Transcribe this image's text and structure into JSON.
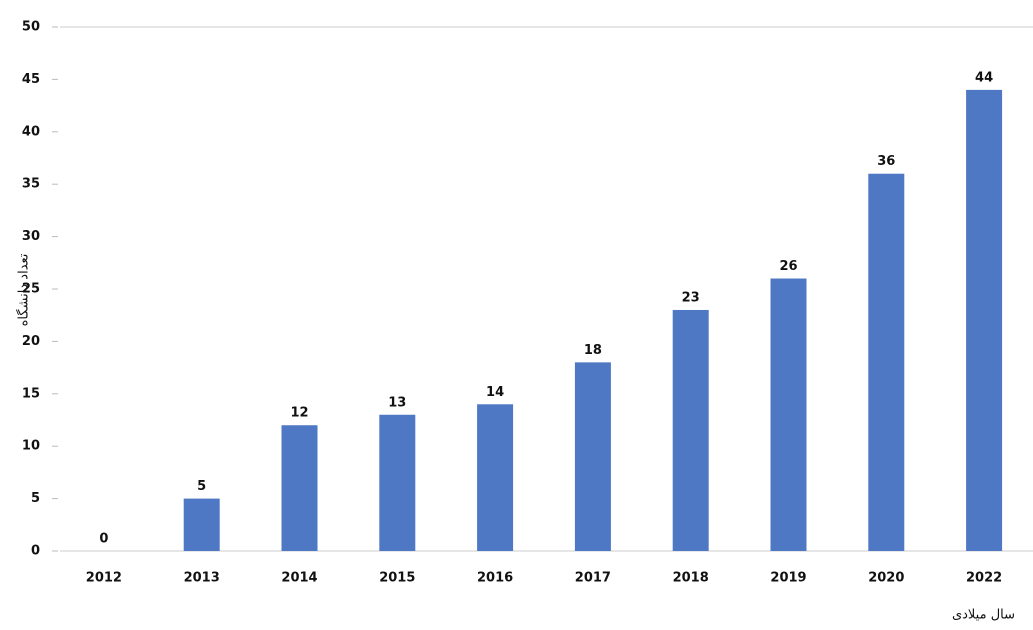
{
  "chart_data": {
    "type": "bar",
    "categories": [
      "2012",
      "2013",
      "2014",
      "2015",
      "2016",
      "2017",
      "2018",
      "2019",
      "2020",
      "2022"
    ],
    "values": [
      0,
      5,
      12,
      13,
      14,
      18,
      23,
      26,
      36,
      44
    ],
    "color": "#4f78c4",
    "ylim": [
      0,
      50
    ],
    "yticks": [
      0,
      5,
      10,
      15,
      20,
      25,
      30,
      35,
      40,
      45,
      50
    ],
    "y_label": "تعداد دانشگاه",
    "x_label": "سال میلادی",
    "grid": false
  }
}
